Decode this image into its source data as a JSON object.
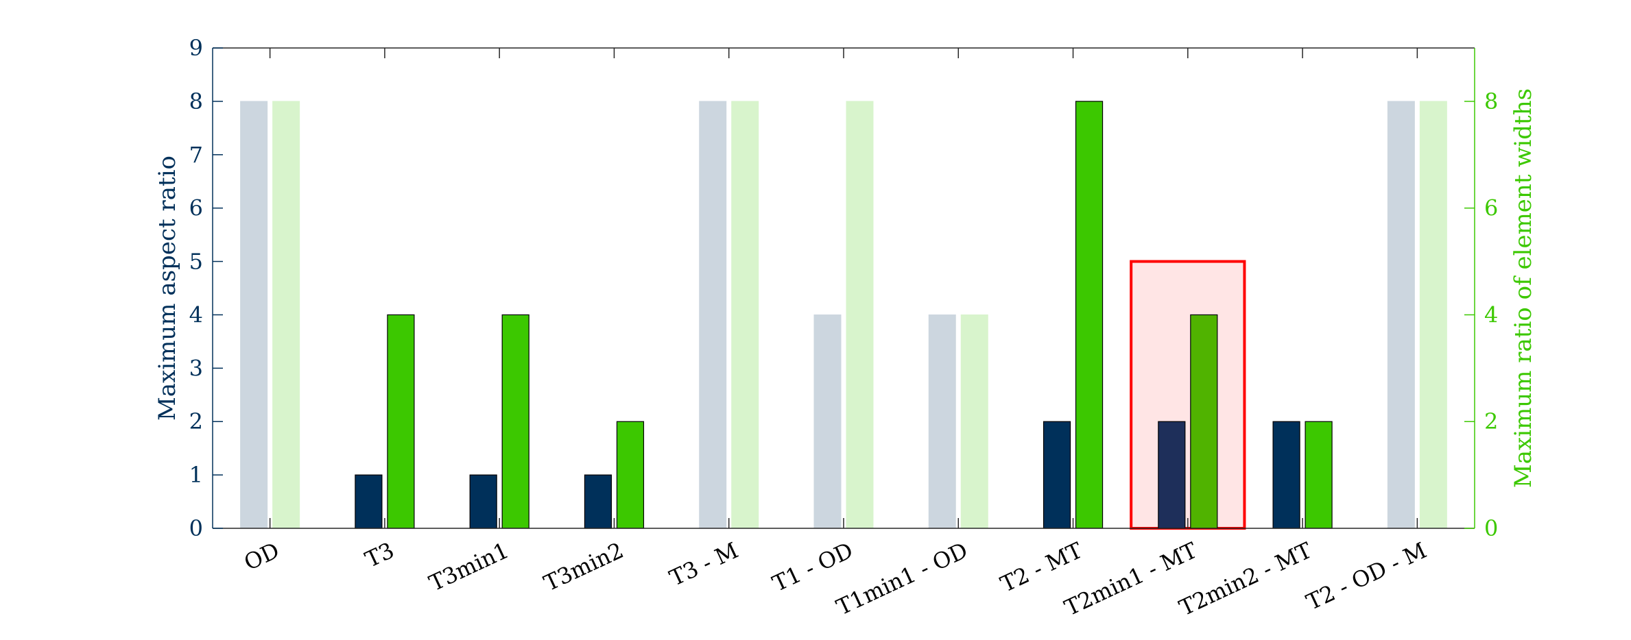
{
  "chart_data": {
    "type": "bar",
    "categories": [
      "OD",
      "T3",
      "T3min1",
      "T3min2",
      "T3 - M",
      "T1 - OD",
      "T1min1 - OD",
      "T2 - MT",
      "T2min1 - MT",
      "T2min2 - MT",
      "T2 - OD - M"
    ],
    "series": [
      {
        "axis": "left",
        "values": [
          8,
          1,
          1,
          1,
          8,
          4,
          4,
          2,
          2,
          2,
          8
        ],
        "faded": [
          true,
          false,
          false,
          false,
          true,
          true,
          true,
          false,
          false,
          false,
          true
        ]
      },
      {
        "axis": "right",
        "values": [
          8,
          4,
          4,
          2,
          8,
          8,
          4,
          8,
          4,
          2,
          8
        ],
        "faded": [
          true,
          false,
          false,
          false,
          true,
          true,
          true,
          false,
          false,
          false,
          true
        ]
      }
    ],
    "ylabel_left": "Maximum aspect ratio",
    "ylabel_right": "Maximum ratio of element widths",
    "ylim_left": [
      0,
      9
    ],
    "ylim_right": [
      0,
      9
    ],
    "yticks_left": [
      "0",
      "1",
      "2",
      "3",
      "4",
      "5",
      "6",
      "7",
      "8",
      "9"
    ],
    "yticks_right": [
      "0",
      "2",
      "4",
      "6",
      "8"
    ],
    "highlight": {
      "category": "T2min1 - MT",
      "y_top": 5,
      "color": "#ff0000"
    },
    "colors": {
      "left_axis": "#00305a",
      "right_axis": "#3cc800",
      "left_bar": "#00305a",
      "left_bar_faded": "#ccd6df",
      "right_bar": "#3cc800",
      "right_bar_faded": "#d8f4cc",
      "highlight_fill": "#ffe5e5",
      "highlight_left_bar": "#1e2f5a",
      "highlight_right_bar": "#50b300"
    },
    "grid": false,
    "legend": "none"
  }
}
